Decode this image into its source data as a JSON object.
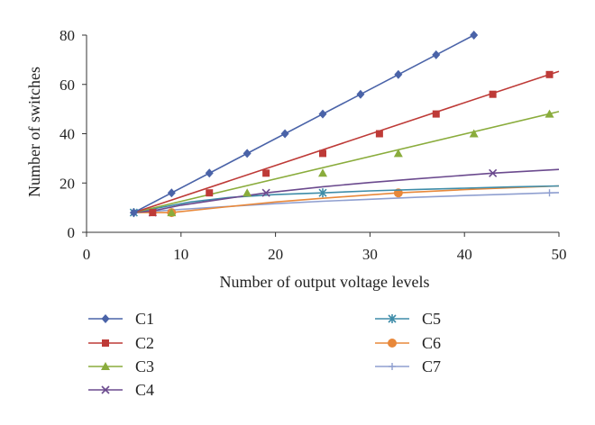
{
  "chart_data": {
    "type": "line",
    "xlabel": "Number of output voltage levels",
    "ylabel": "Number of switches",
    "xlim": [
      0,
      50
    ],
    "ylim": [
      0,
      80
    ],
    "xticks": [
      0,
      10,
      20,
      30,
      40,
      50
    ],
    "yticks": [
      0,
      20,
      40,
      60,
      80
    ],
    "grid": false,
    "legend_position": "bottom",
    "series": [
      {
        "name": "C1",
        "color": "#4a63a8",
        "marker": "diamond",
        "points": [
          [
            5,
            8
          ],
          [
            9,
            16
          ],
          [
            13,
            24
          ],
          [
            17,
            32
          ],
          [
            21,
            40
          ],
          [
            25,
            48
          ],
          [
            29,
            56
          ],
          [
            33,
            64
          ],
          [
            37,
            72
          ],
          [
            41,
            80
          ]
        ],
        "curve": [
          [
            5,
            8
          ],
          [
            41,
            80
          ]
        ]
      },
      {
        "name": "C2",
        "color": "#be3a37",
        "marker": "square",
        "points": [
          [
            7,
            8
          ],
          [
            13,
            16
          ],
          [
            19,
            24
          ],
          [
            25,
            32
          ],
          [
            31,
            40
          ],
          [
            37,
            48
          ],
          [
            43,
            56
          ],
          [
            49,
            64
          ]
        ],
        "curve": [
          [
            5,
            8
          ],
          [
            50,
            65.3
          ]
        ]
      },
      {
        "name": "C3",
        "color": "#8aac3c",
        "marker": "triangle",
        "points": [
          [
            9,
            8
          ],
          [
            17,
            16
          ],
          [
            25,
            24
          ],
          [
            33,
            32
          ],
          [
            41,
            40
          ],
          [
            49,
            48
          ]
        ],
        "curve": [
          [
            5,
            8
          ],
          [
            50,
            49
          ]
        ]
      },
      {
        "name": "C4",
        "color": "#6b4a8e",
        "marker": "x",
        "points": [
          [
            7,
            8
          ],
          [
            19,
            16
          ],
          [
            43,
            24
          ]
        ],
        "curve": [
          [
            5,
            8
          ],
          [
            7,
            8.7
          ],
          [
            10,
            11
          ],
          [
            15,
            13.8
          ],
          [
            19,
            16
          ],
          [
            25,
            18.5
          ],
          [
            30,
            20.2
          ],
          [
            35,
            21.7
          ],
          [
            43,
            24
          ],
          [
            50,
            25.5
          ]
        ]
      },
      {
        "name": "C5",
        "color": "#3e8ca8",
        "marker": "asterisk",
        "points": [
          [
            5,
            8
          ],
          [
            25,
            16
          ]
        ],
        "curve": [
          [
            5,
            8
          ],
          [
            8,
            10.2
          ],
          [
            11,
            12.3
          ],
          [
            15,
            14.1
          ],
          [
            20,
            15.3
          ],
          [
            25,
            16
          ],
          [
            30,
            16.8
          ],
          [
            35,
            17.4
          ],
          [
            40,
            17.9
          ],
          [
            45,
            18.4
          ],
          [
            50,
            18.8
          ]
        ]
      },
      {
        "name": "C6",
        "color": "#e8883a",
        "marker": "circle",
        "points": [
          [
            9,
            8
          ],
          [
            33,
            16
          ]
        ],
        "curve": [
          [
            5,
            8
          ],
          [
            9,
            8
          ],
          [
            15,
            10.4
          ],
          [
            20,
            12.3
          ],
          [
            25,
            13.8
          ],
          [
            30,
            15.2
          ],
          [
            33,
            16
          ],
          [
            40,
            17.3
          ],
          [
            45,
            18.1
          ],
          [
            50,
            18.8
          ]
        ]
      },
      {
        "name": "C7",
        "color": "#8f9fd0",
        "marker": "plus",
        "points": [
          [
            49,
            16
          ]
        ],
        "curve": [
          [
            5,
            8
          ],
          [
            10,
            9.3
          ],
          [
            15,
            10.5
          ],
          [
            20,
            11.6
          ],
          [
            25,
            12.6
          ],
          [
            30,
            13.4
          ],
          [
            35,
            14.2
          ],
          [
            40,
            14.9
          ],
          [
            45,
            15.5
          ],
          [
            49,
            16
          ],
          [
            50,
            16.1
          ]
        ]
      }
    ]
  }
}
